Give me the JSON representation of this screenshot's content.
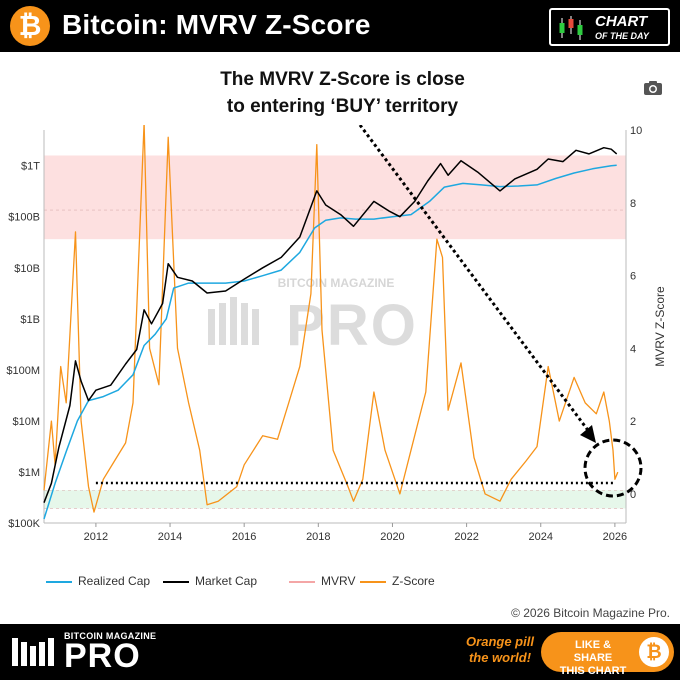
{
  "header": {
    "title": "Bitcoin: MVRV Z-Score",
    "logo_symbol": "₿",
    "badge_line1": "CHART",
    "badge_line2": "OF THE DAY"
  },
  "annotation": {
    "line1": "The MVRV Z-Score is close",
    "line2": "to entering ‘BUY’ territory"
  },
  "toolbar": {
    "camera_icon": "camera-icon"
  },
  "chart_data": {
    "type": "line",
    "x_axis": {
      "ticks": [
        "2012",
        "2014",
        "2016",
        "2018",
        "2020",
        "2022",
        "2024",
        "2026"
      ]
    },
    "y_left": {
      "scale": "log",
      "ticks": [
        "$100K",
        "$1M",
        "$10M",
        "$100M",
        "$1B",
        "$10B",
        "$100B",
        "$1T"
      ],
      "range": [
        100000,
        5000000000000
      ]
    },
    "y_right": {
      "label": "MVRV Z-Score",
      "ticks": [
        "0",
        "2",
        "4",
        "6",
        "8",
        "10"
      ],
      "range": [
        -0.8,
        10
      ]
    },
    "zones": [
      {
        "name": "sell-zone",
        "from": 7,
        "to": 9.3,
        "color": "#fde0e0"
      },
      {
        "name": "buy-zone",
        "from": -0.4,
        "to": 0.1,
        "color": "#e6f7ea"
      }
    ],
    "colors": {
      "realized": "#1ea8e0",
      "market": "#000000",
      "mvrv": "#f4a6a6",
      "zscore": "#f7931a"
    },
    "series": [
      {
        "name": "Realized Cap",
        "axis": "left",
        "points": [
          [
            2010.6,
            120000
          ],
          [
            2010.9,
            600000
          ],
          [
            2011.2,
            2500000
          ],
          [
            2011.5,
            10000000
          ],
          [
            2011.8,
            25000000
          ],
          [
            2012.2,
            30000000
          ],
          [
            2012.6,
            40000000
          ],
          [
            2013.0,
            80000000
          ],
          [
            2013.3,
            300000000
          ],
          [
            2013.6,
            500000000
          ],
          [
            2013.9,
            1000000000
          ],
          [
            2014.1,
            4000000000
          ],
          [
            2014.5,
            5000000000
          ],
          [
            2015.0,
            5000000000
          ],
          [
            2015.5,
            5000000000
          ],
          [
            2016.0,
            5500000000
          ],
          [
            2016.5,
            7000000000
          ],
          [
            2017.0,
            9000000000
          ],
          [
            2017.5,
            20000000000
          ],
          [
            2017.9,
            60000000000
          ],
          [
            2018.2,
            85000000000
          ],
          [
            2018.6,
            95000000000
          ],
          [
            2019.0,
            90000000000
          ],
          [
            2019.5,
            90000000000
          ],
          [
            2020.0,
            100000000000
          ],
          [
            2020.5,
            110000000000
          ],
          [
            2021.0,
            200000000000
          ],
          [
            2021.4,
            380000000000
          ],
          [
            2021.9,
            450000000000
          ],
          [
            2022.4,
            420000000000
          ],
          [
            2022.9,
            390000000000
          ],
          [
            2023.4,
            400000000000
          ],
          [
            2023.9,
            420000000000
          ],
          [
            2024.4,
            560000000000
          ],
          [
            2024.9,
            720000000000
          ],
          [
            2025.4,
            870000000000
          ],
          [
            2025.9,
            1000000000000
          ],
          [
            2026.05,
            1020000000000
          ]
        ]
      },
      {
        "name": "Market Cap",
        "axis": "left",
        "points": [
          [
            2010.6,
            250000
          ],
          [
            2010.8,
            600000
          ],
          [
            2011.0,
            3000000
          ],
          [
            2011.3,
            20000000
          ],
          [
            2011.45,
            150000000
          ],
          [
            2011.6,
            60000000
          ],
          [
            2011.8,
            25000000
          ],
          [
            2012.0,
            40000000
          ],
          [
            2012.4,
            50000000
          ],
          [
            2012.8,
            130000000
          ],
          [
            2013.1,
            250000000
          ],
          [
            2013.3,
            1500000000
          ],
          [
            2013.5,
            800000000
          ],
          [
            2013.8,
            2000000000
          ],
          [
            2013.95,
            12000000000
          ],
          [
            2014.2,
            6500000000
          ],
          [
            2014.6,
            5500000000
          ],
          [
            2015.0,
            3200000000
          ],
          [
            2015.5,
            3500000000
          ],
          [
            2016.0,
            6000000000
          ],
          [
            2016.5,
            10000000000
          ],
          [
            2017.0,
            16000000000
          ],
          [
            2017.5,
            40000000000
          ],
          [
            2017.96,
            320000000000
          ],
          [
            2018.2,
            170000000000
          ],
          [
            2018.6,
            110000000000
          ],
          [
            2018.95,
            65000000000
          ],
          [
            2019.5,
            200000000000
          ],
          [
            2019.9,
            130000000000
          ],
          [
            2020.2,
            100000000000
          ],
          [
            2020.6,
            200000000000
          ],
          [
            2020.95,
            500000000000
          ],
          [
            2021.3,
            1100000000000
          ],
          [
            2021.5,
            650000000000
          ],
          [
            2021.85,
            1250000000000
          ],
          [
            2022.3,
            750000000000
          ],
          [
            2022.9,
            320000000000
          ],
          [
            2023.3,
            550000000000
          ],
          [
            2023.9,
            850000000000
          ],
          [
            2024.2,
            1350000000000
          ],
          [
            2024.6,
            1200000000000
          ],
          [
            2024.95,
            2000000000000
          ],
          [
            2025.3,
            1700000000000
          ],
          [
            2025.7,
            2250000000000
          ],
          [
            2025.9,
            2100000000000
          ],
          [
            2026.05,
            1700000000000
          ]
        ]
      },
      {
        "name": "MVRV",
        "axis": "right",
        "points": []
      },
      {
        "name": "Z-Score",
        "axis": "right",
        "points": [
          [
            2010.6,
            0.1
          ],
          [
            2010.8,
            2.0
          ],
          [
            2010.9,
            0.8
          ],
          [
            2011.05,
            3.5
          ],
          [
            2011.2,
            2.5
          ],
          [
            2011.45,
            7.2
          ],
          [
            2011.6,
            2.0
          ],
          [
            2011.8,
            0.2
          ],
          [
            2011.95,
            -0.5
          ],
          [
            2012.2,
            0.4
          ],
          [
            2012.5,
            0.9
          ],
          [
            2012.8,
            1.4
          ],
          [
            2013.0,
            2.5
          ],
          [
            2013.3,
            10.2
          ],
          [
            2013.45,
            4.0
          ],
          [
            2013.7,
            3.0
          ],
          [
            2013.95,
            9.8
          ],
          [
            2014.2,
            4.0
          ],
          [
            2014.5,
            2.5
          ],
          [
            2014.8,
            1.2
          ],
          [
            2015.0,
            -0.3
          ],
          [
            2015.3,
            -0.2
          ],
          [
            2015.8,
            0.2
          ],
          [
            2016.0,
            0.8
          ],
          [
            2016.5,
            1.6
          ],
          [
            2016.9,
            1.5
          ],
          [
            2017.2,
            2.5
          ],
          [
            2017.5,
            3.5
          ],
          [
            2017.8,
            5.5
          ],
          [
            2017.96,
            9.6
          ],
          [
            2018.1,
            4.5
          ],
          [
            2018.4,
            1.2
          ],
          [
            2018.8,
            0.2
          ],
          [
            2018.95,
            -0.2
          ],
          [
            2019.2,
            0.4
          ],
          [
            2019.5,
            2.8
          ],
          [
            2019.8,
            1.2
          ],
          [
            2020.2,
            0.0
          ],
          [
            2020.5,
            1.2
          ],
          [
            2020.9,
            2.8
          ],
          [
            2021.2,
            7.0
          ],
          [
            2021.35,
            6.5
          ],
          [
            2021.5,
            2.3
          ],
          [
            2021.85,
            3.6
          ],
          [
            2022.2,
            1.0
          ],
          [
            2022.5,
            0.0
          ],
          [
            2022.9,
            -0.2
          ],
          [
            2023.2,
            0.4
          ],
          [
            2023.6,
            0.9
          ],
          [
            2023.9,
            1.3
          ],
          [
            2024.2,
            3.5
          ],
          [
            2024.5,
            2.0
          ],
          [
            2024.9,
            3.2
          ],
          [
            2025.2,
            2.5
          ],
          [
            2025.5,
            2.2
          ],
          [
            2025.7,
            2.8
          ],
          [
            2025.85,
            2.0
          ],
          [
            2025.95,
            1.2
          ],
          [
            2026.0,
            0.4
          ],
          [
            2026.08,
            0.6
          ]
        ]
      }
    ],
    "threshold": {
      "value": 0.3,
      "axis": "right",
      "from": 2012.0,
      "to": 2025.95,
      "style": "dotted"
    },
    "watermark": {
      "line1": "BITCOIN MAGAZINE",
      "line2": "PRO"
    }
  },
  "legend": [
    {
      "label": "Realized Cap",
      "color": "#1ea8e0"
    },
    {
      "label": "Market Cap",
      "color": "#000000"
    },
    {
      "label": "MVRV",
      "color": "#f4a6a6"
    },
    {
      "label": "Z-Score",
      "color": "#f7931a"
    }
  ],
  "copyright": "© 2026 Bitcoin Magazine Pro.",
  "footer": {
    "brand_small": "BITCOIN MAGAZINE",
    "brand_large": "PRO",
    "tagline_line1": "Orange pill",
    "tagline_line2": "the world!",
    "share_line1": "LIKE & SHARE",
    "share_line2": "THIS CHART",
    "share_symbol": "₿"
  }
}
